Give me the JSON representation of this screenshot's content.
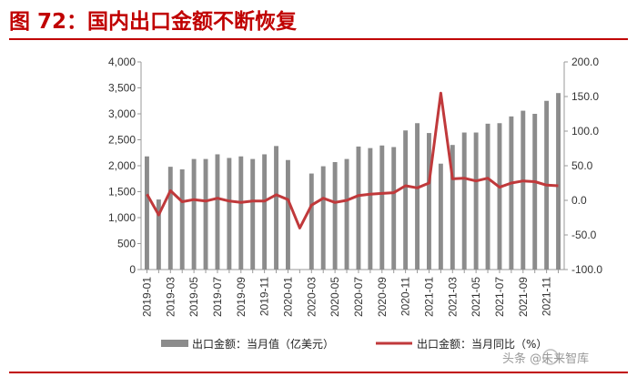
{
  "title": "图 72：国内出口金额不断恢复",
  "watermark": "头条 @未来智库",
  "colors": {
    "bars": "#8c8c8c",
    "line": "#c0393b",
    "title": "#c00000"
  },
  "chart_data": {
    "type": "bar",
    "categories": [
      "2019-01",
      "2019-02",
      "2019-03",
      "2019-04",
      "2019-05",
      "2019-06",
      "2019-07",
      "2019-08",
      "2019-09",
      "2019-10",
      "2019-11",
      "2019-12",
      "2020-01",
      "2020-02",
      "2020-03",
      "2020-04",
      "2020-05",
      "2020-06",
      "2020-07",
      "2020-08",
      "2020-09",
      "2020-10",
      "2020-11",
      "2020-12",
      "2021-01",
      "2021-02",
      "2021-03",
      "2021-04",
      "2021-05",
      "2021-06",
      "2021-07",
      "2021-08",
      "2021-09",
      "2021-10",
      "2021-11",
      "2021-12"
    ],
    "x_tick_labels": [
      "2019-01",
      "2019-03",
      "2019-05",
      "2019-07",
      "2019-09",
      "2019-11",
      "2020-01",
      "2020-03",
      "2020-05",
      "2020-07",
      "2020-09",
      "2020-11",
      "2021-01",
      "2021-03",
      "2021-05",
      "2021-07",
      "2021-09",
      "2021-11"
    ],
    "series": [
      {
        "name": "出口金额：当月值（亿美元）",
        "type": "bar",
        "axis": "left",
        "values": [
          2180,
          1350,
          1980,
          1930,
          2130,
          2130,
          2220,
          2150,
          2180,
          2130,
          2220,
          2380,
          2110,
          null,
          1850,
          1990,
          2070,
          2130,
          2370,
          2340,
          2390,
          2360,
          2680,
          2820,
          2630,
          2040,
          2400,
          2640,
          2640,
          2810,
          2820,
          2950,
          3060,
          3000,
          3250,
          3400
        ]
      },
      {
        "name": "出口金额：当月同比（%）",
        "type": "line",
        "axis": "right",
        "values": [
          9,
          -21,
          14,
          -2,
          1,
          -1,
          3,
          -1,
          -3,
          -1,
          -1,
          8,
          1,
          -40,
          -7,
          3,
          -3,
          0,
          7,
          9,
          10,
          11,
          21,
          18,
          25,
          155,
          31,
          32,
          28,
          32,
          19,
          25,
          28,
          27,
          22,
          21
        ]
      }
    ],
    "y_left": {
      "min": 0,
      "max": 4000,
      "ticks": [
        "0",
        "500",
        "1,000",
        "1,500",
        "2,000",
        "2,500",
        "3,000",
        "3,500",
        "4,000"
      ]
    },
    "y_right": {
      "min": -100,
      "max": 200,
      "ticks": [
        "-100.0",
        "-50.0",
        "0.0",
        "50.0",
        "100.0",
        "150.0",
        "200.0"
      ]
    },
    "legend": {
      "position": "bottom",
      "items": [
        "出口金额：当月值（亿美元）",
        "出口金额：当月同比（%）"
      ]
    },
    "grid": false
  }
}
